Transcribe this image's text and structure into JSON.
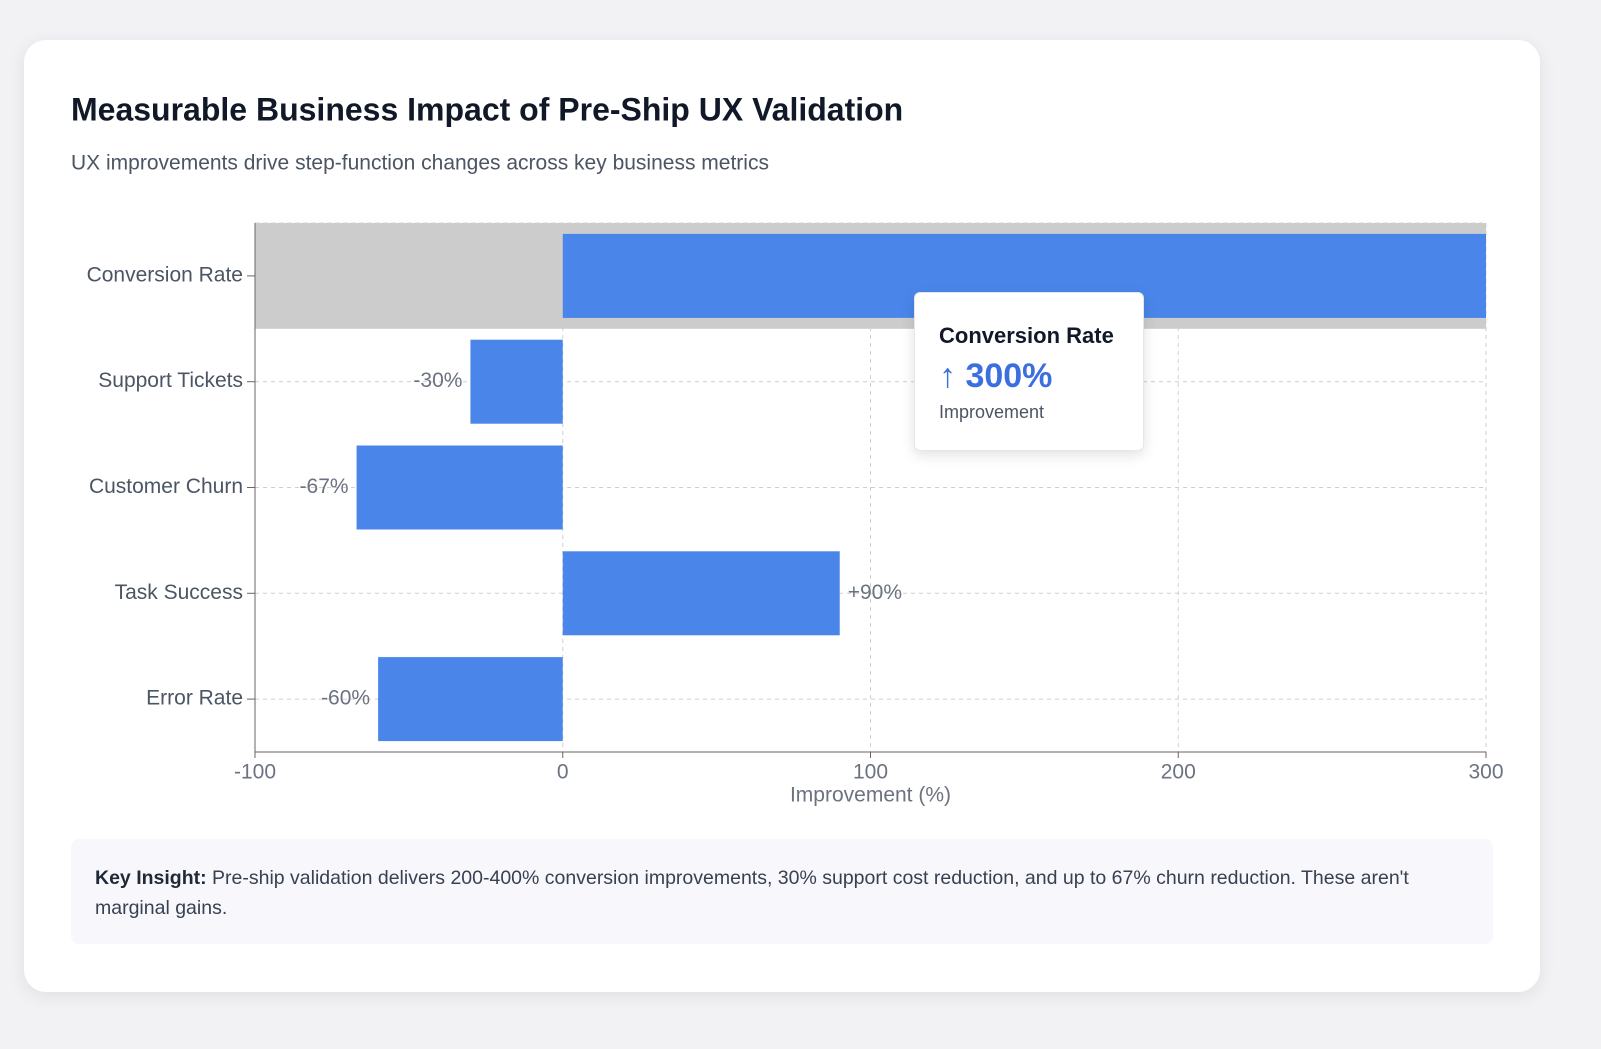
{
  "chart_data": {
    "type": "bar",
    "orientation": "horizontal",
    "title": "Measurable Business Impact of Pre-Ship UX Validation",
    "subtitle": "UX improvements drive step-function changes across key business metrics",
    "categories": [
      "Conversion Rate",
      "Support Tickets",
      "Customer Churn",
      "Task Success",
      "Error Rate"
    ],
    "values": [
      300,
      -30,
      -67,
      90,
      -60
    ],
    "value_labels": [
      null,
      "-30%",
      "-67%",
      "+90%",
      "-60%"
    ],
    "color": "#4a86ea",
    "xlim": [
      -100,
      300
    ],
    "xticks": [
      -100,
      0,
      100,
      200,
      300
    ],
    "xlabel": "Improvement (%)",
    "grid": true,
    "tooltip": {
      "label": "↑ 300%",
      "caption": "Improvement"
    }
  },
  "insight": {
    "label": "Key Insight:",
    "text": "Pre-ship validation delivers 200-400% conversion improvements, 30% support cost reduction, and up to 67% churn reduction. These aren't marginal gains."
  }
}
